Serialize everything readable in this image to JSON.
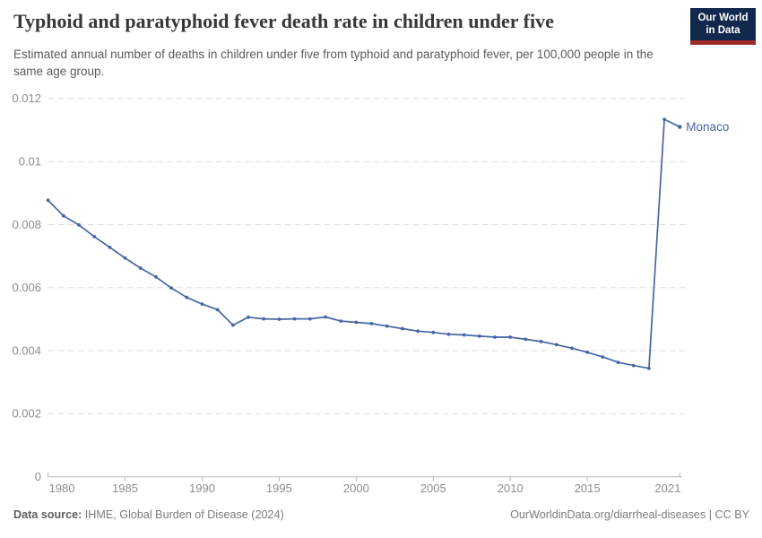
{
  "header": {
    "title": "Typhoid and paratyphoid fever death rate in children under five",
    "subtitle": "Estimated annual number of deaths in children under five from typhoid and paratyphoid fever, per 100,000 people in the same age group.",
    "logo": {
      "line1": "Our World",
      "line2": "in Data"
    }
  },
  "chart_data": {
    "type": "line",
    "title": "Typhoid and paratyphoid fever death rate in children under five",
    "xlabel": "",
    "ylabel": "",
    "xlim": [
      1980,
      2021
    ],
    "ylim": [
      0,
      0.012
    ],
    "grid": "horizontal-dashed",
    "legend_position": "end-of-line-label",
    "x_ticks": [
      1980,
      1985,
      1990,
      1995,
      2000,
      2005,
      2010,
      2015,
      2021
    ],
    "x_tick_labels": [
      "1980",
      "1985",
      "1990",
      "1995",
      "2000",
      "2005",
      "2010",
      "2015",
      "2021"
    ],
    "y_ticks": [
      0,
      0.002,
      0.004,
      0.006,
      0.008,
      0.01,
      0.012
    ],
    "y_tick_labels": [
      "0",
      "0.002",
      "0.004",
      "0.006",
      "0.008",
      "0.01",
      "0.012"
    ],
    "series": [
      {
        "name": "Monaco",
        "color": "#4666A3",
        "x": [
          1980,
          1981,
          1982,
          1983,
          1984,
          1985,
          1986,
          1987,
          1988,
          1989,
          1990,
          1991,
          1992,
          1993,
          1994,
          1995,
          1996,
          1997,
          1998,
          1999,
          2000,
          2001,
          2002,
          2003,
          2004,
          2005,
          2006,
          2007,
          2008,
          2009,
          2010,
          2011,
          2012,
          2013,
          2014,
          2015,
          2016,
          2017,
          2018,
          2019,
          2020,
          2021
        ],
        "values": [
          0.00877,
          0.00828,
          0.00799,
          0.00762,
          0.00728,
          0.00694,
          0.00662,
          0.00634,
          0.00599,
          0.00569,
          0.00548,
          0.0053,
          0.00481,
          0.00506,
          0.00501,
          0.005,
          0.00501,
          0.00501,
          0.00507,
          0.00494,
          0.0049,
          0.00486,
          0.00478,
          0.0047,
          0.00462,
          0.00458,
          0.00452,
          0.0045,
          0.00446,
          0.00443,
          0.00443,
          0.00436,
          0.00429,
          0.00419,
          0.00408,
          0.00395,
          0.0038,
          0.00363,
          0.00353,
          0.00344,
          0.01134,
          0.0111
        ]
      }
    ]
  },
  "footer": {
    "source_label": "Data source:",
    "source_text": " IHME, Global Burden of Disease (2024)",
    "link_text": "OurWorldinData.org/diarrheal-diseases | CC BY"
  },
  "colors": {
    "line": "#4666A3",
    "title": "#383636",
    "subtitle": "#5A5A5A",
    "axis_label": "#8C8C8C",
    "gridline": "#DDDDDD",
    "axis_line": "#B8B8B8",
    "logo_bg": "#12284C",
    "logo_stripe": "#A02C2C"
  }
}
